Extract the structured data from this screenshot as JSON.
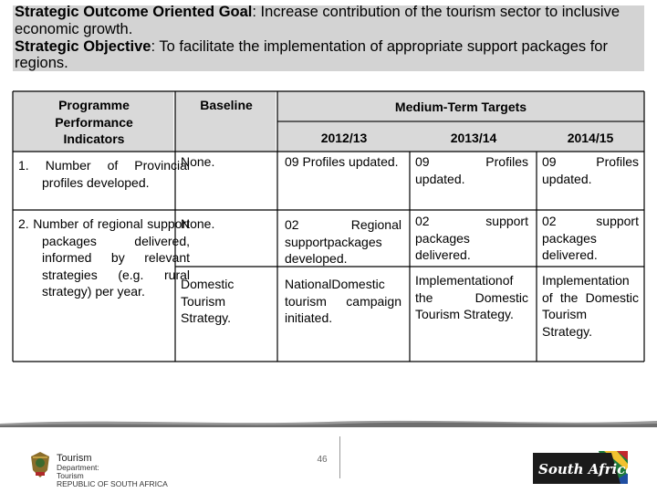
{
  "header": {
    "goal_label": "Strategic Outcome Oriented Goal",
    "goal_text": ": Increase contribution of the tourism sector to inclusive economic growth.",
    "objective_label": "Strategic Objective",
    "objective_text": ": To facilitate the implementation of appropriate support packages for regions."
  },
  "table": {
    "col_indicators": "Programme Performance Indicators",
    "col_baseline": "Baseline",
    "col_targets": "Medium-Term Targets",
    "years": [
      "2012/13",
      "2013/14",
      "2014/15"
    ],
    "rows": [
      {
        "indicator": "1. Number of Provincial profiles developed.",
        "baseline": "None.",
        "t2012": "09 Profiles updated.",
        "t2013": "09 Profiles updated.",
        "t2014": "09 Profiles updated."
      },
      {
        "indicator": "2. Number of regional support packages delivered, informed by relevant strategies (e.g. rural strategy) per year.",
        "sub": [
          {
            "baseline": "None.",
            "t2012": "02 Regional supportpackages developed.",
            "t2013": "02 support packages delivered.",
            "t2014": "02 support packages delivered."
          },
          {
            "baseline": "Domestic Tourism Strategy.",
            "t2012": "NationalDomestic tourism campaign initiated.",
            "t2013": "Implementationof the Domestic Tourism Strategy.",
            "t2014": "Implementation of the Domestic Tourism Strategy."
          }
        ]
      }
    ]
  },
  "footer": {
    "page_number": "46",
    "dept_name": "Tourism",
    "dept_line1": "Department:",
    "dept_line2": "Tourism",
    "dept_line3": "REPUBLIC OF SOUTH AFRICA",
    "brand": "South Africa"
  }
}
